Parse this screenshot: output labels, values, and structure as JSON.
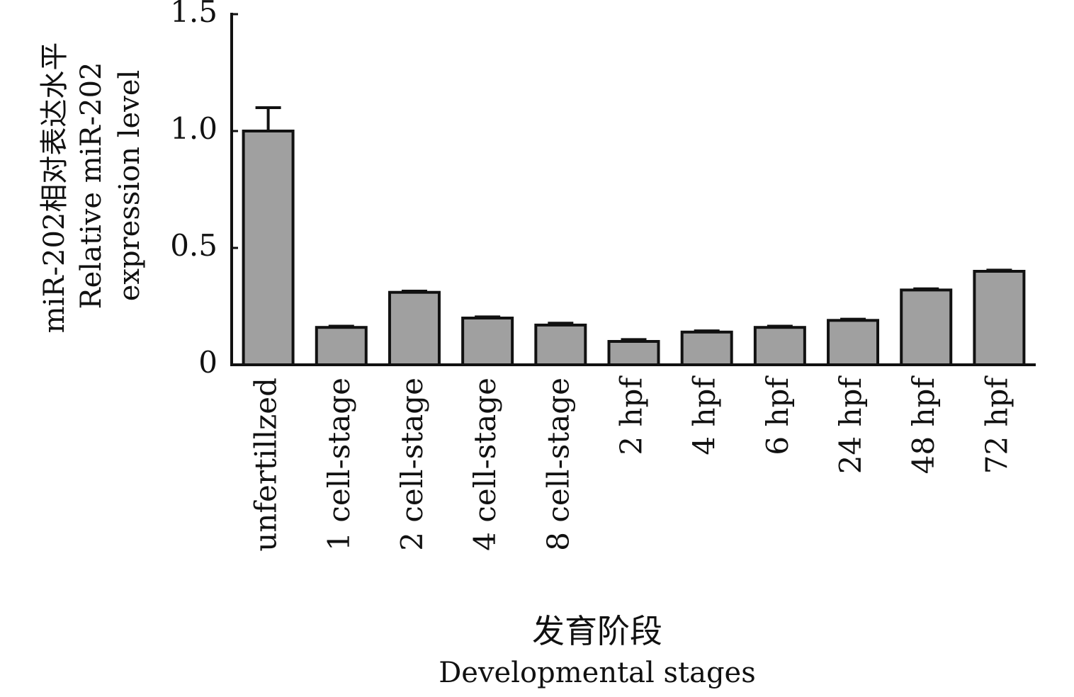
{
  "chart_data": {
    "type": "bar",
    "y_label": [
      "miR-202相对表达水平",
      "Relative miR-202",
      "expression level"
    ],
    "x_label": [
      "发育阶段",
      "Developmental stages"
    ],
    "categories": [
      "unfertillzed",
      "1 cell-stage",
      "2 cell-stage",
      "4 cell-stage",
      "8 cell-stage",
      "2 hpf",
      "4 hpf",
      "6 hpf",
      "24 hpf",
      "48 hpf",
      "72 hpf"
    ],
    "values": [
      1.0,
      0.16,
      0.31,
      0.2,
      0.17,
      0.1,
      0.14,
      0.16,
      0.19,
      0.32,
      0.4
    ],
    "errors": [
      0.1,
      0.005,
      0.005,
      0.005,
      0.008,
      0.008,
      0.005,
      0.005,
      0.005,
      0.005,
      0.005
    ],
    "color": "#a0a0a0",
    "ylim": [
      0,
      1.5
    ],
    "yticks": [
      0,
      0.5,
      {
        "value": 1,
        "label": "1.0"
      },
      1.5
    ]
  }
}
